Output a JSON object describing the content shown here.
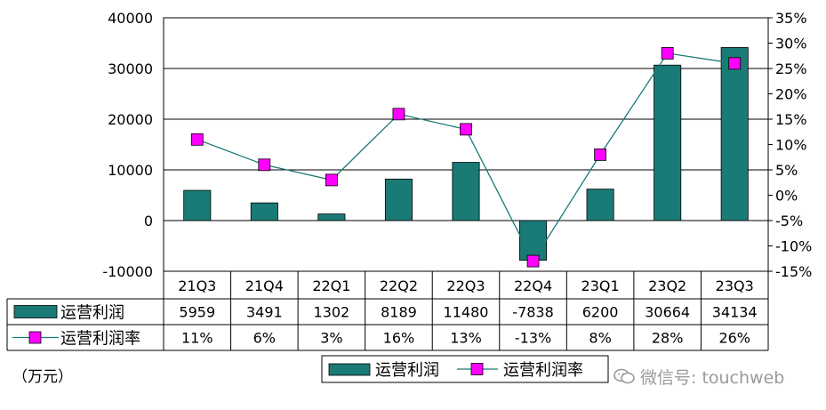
{
  "chart_data": {
    "type": "bar",
    "categories": [
      "21Q3",
      "21Q4",
      "22Q1",
      "22Q2",
      "22Q3",
      "22Q4",
      "23Q1",
      "23Q2",
      "23Q3"
    ],
    "series": [
      {
        "name": "运营利润",
        "type": "bar",
        "axis": "left",
        "color": "#1a7a76",
        "values": [
          5959,
          3491,
          1302,
          8189,
          11480,
          -7838,
          6200,
          30664,
          34134
        ]
      },
      {
        "name": "运营利润率",
        "type": "line",
        "axis": "right",
        "color": "#1a7a76",
        "marker_color": "#ff00ff",
        "values": [
          11,
          6,
          3,
          16,
          13,
          -13,
          8,
          28,
          26
        ],
        "labels": [
          "11%",
          "6%",
          "3%",
          "16%",
          "13%",
          "-13%",
          "8%",
          "28%",
          "26%"
        ]
      }
    ],
    "table_rows": [
      {
        "label": "运营利润",
        "values": [
          "5959",
          "3491",
          "1302",
          "8189",
          "11480",
          "-7838",
          "6200",
          "30664",
          "34134"
        ]
      },
      {
        "label": "运营利润率",
        "values": [
          "11%",
          "6%",
          "3%",
          "16%",
          "13%",
          "-13%",
          "8%",
          "28%",
          "26%"
        ]
      }
    ],
    "y_left": {
      "min": -10000,
      "max": 40000,
      "ticks": [
        "-10000",
        "0",
        "10000",
        "20000",
        "30000",
        "40000"
      ],
      "unit_label": "（万元）"
    },
    "y_right": {
      "min": -15,
      "max": 35,
      "ticks": [
        "-15%",
        "-10%",
        "-5%",
        "0%",
        "5%",
        "10%",
        "15%",
        "20%",
        "25%",
        "30%",
        "35%"
      ]
    },
    "legend": {
      "position": "bottom-right",
      "items": [
        "运营利润",
        "运营利润率"
      ]
    },
    "grid": true
  },
  "watermark": "微信号: touchweb"
}
